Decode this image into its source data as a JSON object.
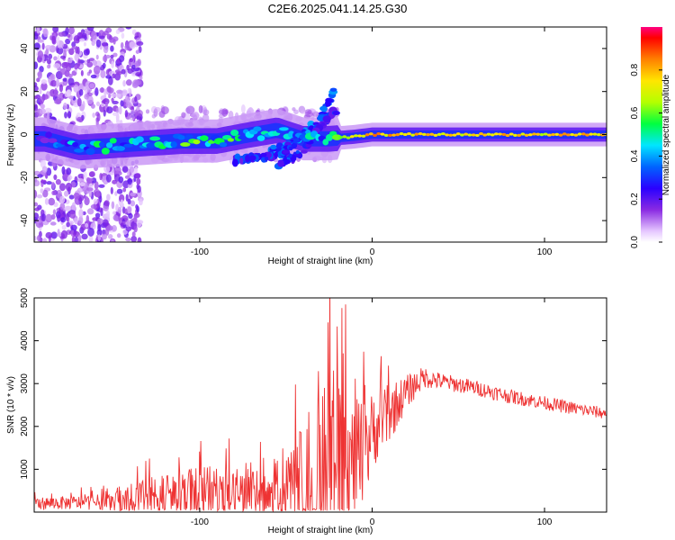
{
  "title": "C2E6.2025.041.14.25.G30",
  "chart_data": [
    {
      "type": "heatmap",
      "title": "C2E6.2025.041.14.25.G30",
      "xlabel": "Height of straight line (km)",
      "ylabel": "Frequency (Hz)",
      "xlim": [
        -196,
        136
      ],
      "ylim": [
        -50,
        50
      ],
      "xticks": [
        -100,
        0,
        100
      ],
      "yticks": [
        -40,
        -20,
        0,
        20,
        40
      ],
      "colorbar": {
        "label": "Normalized spectral amplitude",
        "range": [
          0,
          1
        ],
        "ticks": [
          0.0,
          0.2,
          0.4,
          0.6,
          0.8
        ]
      },
      "ridge": [
        {
          "x": -190,
          "f": -2,
          "amp": 0.25
        },
        {
          "x": -170,
          "f": -6,
          "amp": 0.45
        },
        {
          "x": -150,
          "f": -5,
          "amp": 0.5
        },
        {
          "x": -130,
          "f": -4,
          "amp": 0.45
        },
        {
          "x": -110,
          "f": -3,
          "amp": 0.55
        },
        {
          "x": -90,
          "f": -3,
          "amp": 0.55
        },
        {
          "x": -70,
          "f": 0,
          "amp": 0.5
        },
        {
          "x": -55,
          "f": 2,
          "amp": 0.45
        },
        {
          "x": -40,
          "f": -2,
          "amp": 0.45
        },
        {
          "x": -25,
          "f": -2,
          "amp": 0.5
        },
        {
          "x": -10,
          "f": -1,
          "amp": 0.8
        },
        {
          "x": 0,
          "f": 0,
          "amp": 0.85
        },
        {
          "x": 50,
          "f": 0,
          "amp": 0.8
        },
        {
          "x": 100,
          "f": 0,
          "amp": 0.8
        },
        {
          "x": 136,
          "f": 0,
          "amp": 0.8
        }
      ],
      "branches": [
        {
          "x": [
            -60,
            -45,
            -30,
            -22
          ],
          "f": [
            -8,
            -4,
            8,
            20
          ],
          "amp": 0.35
        },
        {
          "x": [
            -55,
            -40,
            -30,
            -20
          ],
          "f": [
            -14,
            -8,
            4,
            12
          ],
          "amp": 0.3
        },
        {
          "x": [
            -80,
            -60,
            -45
          ],
          "f": [
            -12,
            -10,
            -6
          ],
          "amp": 0.3
        }
      ]
    },
    {
      "type": "line",
      "xlabel": "Height of straight line (km)",
      "ylabel": "SNR (10 * v/v)",
      "xlim": [
        -196,
        136
      ],
      "ylim": [
        0,
        5000
      ],
      "xticks": [
        -100,
        0,
        100
      ],
      "yticks": [
        1000,
        2000,
        3000,
        4000,
        5000
      ],
      "color": "#ee3333",
      "envelope": {
        "x": [
          -196,
          -170,
          -150,
          -135,
          -120,
          -100,
          -80,
          -65,
          -55,
          -45,
          -35,
          -25,
          -15,
          -5,
          0,
          10,
          20,
          30,
          40,
          60,
          80,
          100,
          120,
          136
        ],
        "base": [
          200,
          220,
          240,
          280,
          350,
          400,
          420,
          360,
          300,
          400,
          600,
          800,
          900,
          1200,
          1900,
          2300,
          2800,
          3150,
          3050,
          2900,
          2700,
          2550,
          2400,
          2300
        ],
        "spread": [
          150,
          160,
          200,
          450,
          600,
          650,
          700,
          600,
          500,
          1200,
          2000,
          2400,
          1800,
          1400,
          900,
          700,
          400,
          250,
          200,
          180,
          170,
          160,
          150,
          140
        ]
      }
    }
  ]
}
